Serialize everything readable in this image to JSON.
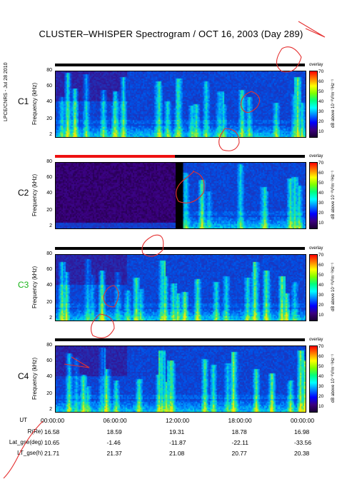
{
  "title": "CLUSTER–WHISPER Spectrogram / OCT 16, 2003 (Day 289)",
  "side_label": "LPCE/CNRS - Jul 28 2010",
  "colorbar": {
    "label": "dB above 10⁻⁸V²m⁻²Hz⁻¹",
    "ticks": [
      "70",
      "60",
      "50",
      "40",
      "30",
      "20",
      "10"
    ],
    "overlay_word": "overlay",
    "colors": [
      "#ff0000",
      "#ff7f00",
      "#ffff00",
      "#7fff00",
      "#00ff7f",
      "#00ffff",
      "#007fff",
      "#0000ff",
      "#3b007f",
      "#1a0033"
    ]
  },
  "ylabel": "Frequency (kHz)",
  "yticks": [
    "80",
    "60",
    "40",
    "20",
    "2"
  ],
  "panels": [
    {
      "name": "C1",
      "label_color": "#000000"
    },
    {
      "name": "C2",
      "label_color": "#000000"
    },
    {
      "name": "C3",
      "label_color": "#18b418"
    },
    {
      "name": "C4",
      "label_color": "#000000"
    }
  ],
  "xaxis": {
    "ut_label": "UT",
    "ut": [
      "00:00:00",
      "06:00:00",
      "12:00:00",
      "18:00:00",
      "00:00:00"
    ],
    "rows": [
      {
        "label": "R(Re)",
        "values": [
          "16.58",
          "18.59",
          "19.31",
          "18.78",
          "16.98"
        ]
      },
      {
        "label": "Lat_gse(deg)",
        "values": [
          "10.65",
          "-1.46",
          "-11.87",
          "-22.11",
          "-33.56"
        ]
      },
      {
        "label": "LT_gse(h)",
        "values": [
          "21.71",
          "21.37",
          "21.08",
          "20.77",
          "20.38"
        ]
      }
    ]
  },
  "chart_data": {
    "type": "heatmap",
    "title": "CLUSTER–WHISPER Spectrogram / OCT 16, 2003 (Day 289)",
    "xlabel": "UT",
    "ylabel": "Frequency (kHz)",
    "x_ticks": [
      "00:00:00",
      "06:00:00",
      "12:00:00",
      "18:00:00",
      "00:00:00"
    ],
    "y_range": [
      2,
      80
    ],
    "y_ticks": [
      2,
      20,
      40,
      60,
      80
    ],
    "colorbar_range": [
      10,
      70
    ],
    "series": [
      {
        "name": "C1"
      },
      {
        "name": "C2"
      },
      {
        "name": "C3"
      },
      {
        "name": "C4"
      }
    ]
  }
}
